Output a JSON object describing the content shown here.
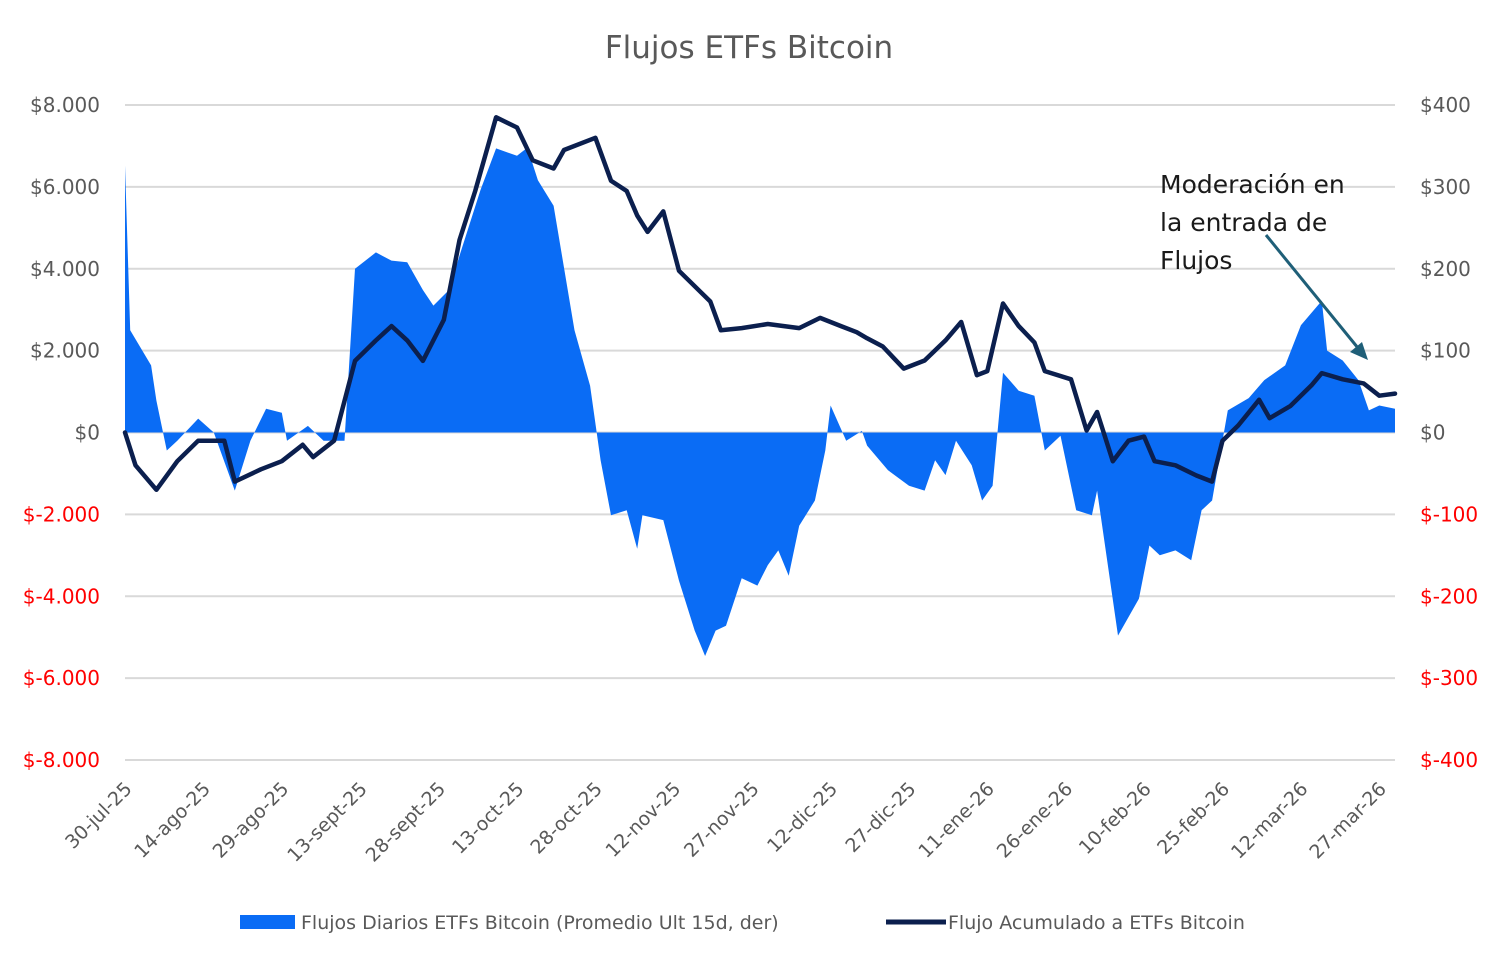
{
  "chart_data": {
    "type": "area+line",
    "title": "Flujos ETFs Bitcoin",
    "xlim": [
      "2025-07-30",
      "2026-03-30"
    ],
    "x_tick_labels": [
      "30-jul-25",
      "14-ago-25",
      "29-ago-25",
      "13-sept-25",
      "28-sept-25",
      "13-oct-25",
      "28-oct-25",
      "12-nov-25",
      "27-nov-25",
      "12-dic-25",
      "27-dic-25",
      "11-ene-26",
      "26-ene-26",
      "10-feb-26",
      "25-feb-26",
      "12-mar-26",
      "27-mar-26"
    ],
    "left_axis": {
      "ylim": [
        -8000,
        8000
      ],
      "ticks": [
        8000,
        6000,
        4000,
        2000,
        0,
        -2000,
        -4000,
        -6000,
        -8000
      ],
      "tick_labels": [
        "$8.000",
        "$6.000",
        "$4.000",
        "$2.000",
        "$0",
        "$-2.000",
        "$-4.000",
        "$-6.000",
        "$-8.000"
      ]
    },
    "right_axis": {
      "ylim": [
        -400,
        400
      ],
      "ticks": [
        400,
        300,
        200,
        100,
        0,
        -100,
        -200,
        -300,
        -400
      ],
      "tick_labels": [
        "$400",
        "$300",
        "$200",
        "$100",
        "$0",
        "$-100",
        "$-200",
        "$-300",
        "$-400"
      ]
    },
    "negative_tick_color": "#ff0000",
    "grid": true,
    "legend_position": "bottom",
    "series": [
      {
        "name": "Flujos Diarios ETFs Bitcoin (Promedio Ult 15d, der)",
        "type": "area",
        "axis": "right",
        "color": "#0a6cf5",
        "points": [
          [
            "2025-07-30",
            326
          ],
          [
            "2025-07-31",
            125
          ],
          [
            "2025-08-04",
            82
          ],
          [
            "2025-08-05",
            39
          ],
          [
            "2025-08-07",
            -22
          ],
          [
            "2025-08-09",
            -10
          ],
          [
            "2025-08-13",
            17
          ],
          [
            "2025-08-16",
            0
          ],
          [
            "2025-08-20",
            -71
          ],
          [
            "2025-08-23",
            -10
          ],
          [
            "2025-08-26",
            29
          ],
          [
            "2025-08-29",
            24
          ],
          [
            "2025-08-30",
            -10
          ],
          [
            "2025-09-03",
            8
          ],
          [
            "2025-09-06",
            -10
          ],
          [
            "2025-09-10",
            -10
          ],
          [
            "2025-09-12",
            200
          ],
          [
            "2025-09-16",
            220
          ],
          [
            "2025-09-19",
            210
          ],
          [
            "2025-09-22",
            208
          ],
          [
            "2025-09-25",
            174
          ],
          [
            "2025-09-27",
            155
          ],
          [
            "2025-09-30",
            174
          ],
          [
            "2025-10-02",
            216
          ],
          [
            "2025-10-06",
            296
          ],
          [
            "2025-10-09",
            347
          ],
          [
            "2025-10-13",
            338
          ],
          [
            "2025-10-15",
            348
          ],
          [
            "2025-10-17",
            308
          ],
          [
            "2025-10-20",
            277
          ],
          [
            "2025-10-24",
            125
          ],
          [
            "2025-10-27",
            57
          ],
          [
            "2025-10-29",
            -34
          ],
          [
            "2025-10-31",
            -101
          ],
          [
            "2025-11-03",
            -95
          ],
          [
            "2025-11-05",
            -142
          ],
          [
            "2025-11-06",
            -101
          ],
          [
            "2025-11-10",
            -107
          ],
          [
            "2025-11-13",
            -181
          ],
          [
            "2025-11-16",
            -242
          ],
          [
            "2025-11-18",
            -273
          ],
          [
            "2025-11-20",
            -242
          ],
          [
            "2025-11-22",
            -236
          ],
          [
            "2025-11-25",
            -178
          ],
          [
            "2025-11-28",
            -187
          ],
          [
            "2025-11-30",
            -162
          ],
          [
            "2025-12-02",
            -144
          ],
          [
            "2025-12-04",
            -175
          ],
          [
            "2025-12-06",
            -114
          ],
          [
            "2025-12-09",
            -83
          ],
          [
            "2025-12-11",
            -22
          ],
          [
            "2025-12-12",
            33
          ],
          [
            "2025-12-15",
            -10
          ],
          [
            "2025-12-18",
            2
          ],
          [
            "2025-12-19",
            -16
          ],
          [
            "2025-12-23",
            -46
          ],
          [
            "2025-12-27",
            -65
          ],
          [
            "2025-12-30",
            -71
          ],
          [
            "2026-01-01",
            -34
          ],
          [
            "2026-01-03",
            -52
          ],
          [
            "2026-01-05",
            -10
          ],
          [
            "2026-01-08",
            -40
          ],
          [
            "2026-01-10",
            -83
          ],
          [
            "2026-01-12",
            -65
          ],
          [
            "2026-01-14",
            73
          ],
          [
            "2026-01-17",
            51
          ],
          [
            "2026-01-20",
            45
          ],
          [
            "2026-01-22",
            -22
          ],
          [
            "2026-01-25",
            -4
          ],
          [
            "2026-01-28",
            -95
          ],
          [
            "2026-01-31",
            -101
          ],
          [
            "2026-02-01",
            -71
          ],
          [
            "2026-02-05",
            -248
          ],
          [
            "2026-02-09",
            -203
          ],
          [
            "2026-02-11",
            -138
          ],
          [
            "2026-02-13",
            -150
          ],
          [
            "2026-02-16",
            -144
          ],
          [
            "2026-02-19",
            -156
          ],
          [
            "2026-02-21",
            -95
          ],
          [
            "2026-02-23",
            -83
          ],
          [
            "2026-02-25",
            -10
          ],
          [
            "2026-02-26",
            27
          ],
          [
            "2026-03-02",
            42
          ],
          [
            "2026-03-05",
            64
          ],
          [
            "2026-03-09",
            82
          ],
          [
            "2026-03-12",
            131
          ],
          [
            "2026-03-16",
            161
          ],
          [
            "2026-03-17",
            100
          ],
          [
            "2026-03-20",
            88
          ],
          [
            "2026-03-23",
            64
          ],
          [
            "2026-03-25",
            27
          ],
          [
            "2026-03-27",
            33
          ],
          [
            "2026-03-30",
            29
          ]
        ]
      },
      {
        "name": "Flujo Acumulado a ETFs Bitcoin",
        "type": "line",
        "axis": "left",
        "color": "#0b1f4e",
        "points": [
          [
            "2025-07-30",
            0
          ],
          [
            "2025-08-01",
            -800
          ],
          [
            "2025-08-05",
            -1400
          ],
          [
            "2025-08-09",
            -700
          ],
          [
            "2025-08-13",
            -200
          ],
          [
            "2025-08-18",
            -200
          ],
          [
            "2025-08-20",
            -1200
          ],
          [
            "2025-08-25",
            -900
          ],
          [
            "2025-08-29",
            -700
          ],
          [
            "2025-09-02",
            -300
          ],
          [
            "2025-09-04",
            -600
          ],
          [
            "2025-09-08",
            -200
          ],
          [
            "2025-09-12",
            1750
          ],
          [
            "2025-09-16",
            2250
          ],
          [
            "2025-09-19",
            2600
          ],
          [
            "2025-09-22",
            2250
          ],
          [
            "2025-09-25",
            1750
          ],
          [
            "2025-09-29",
            2750
          ],
          [
            "2025-10-02",
            4700
          ],
          [
            "2025-10-05",
            5900
          ],
          [
            "2025-10-09",
            7700
          ],
          [
            "2025-10-13",
            7450
          ],
          [
            "2025-10-16",
            6650
          ],
          [
            "2025-10-20",
            6450
          ],
          [
            "2025-10-22",
            6900
          ],
          [
            "2025-10-28",
            7200
          ],
          [
            "2025-10-31",
            6150
          ],
          [
            "2025-11-03",
            5900
          ],
          [
            "2025-11-05",
            5300
          ],
          [
            "2025-11-07",
            4900
          ],
          [
            "2025-11-10",
            5400
          ],
          [
            "2025-11-13",
            3950
          ],
          [
            "2025-11-17",
            3450
          ],
          [
            "2025-11-19",
            3200
          ],
          [
            "2025-11-21",
            2500
          ],
          [
            "2025-11-25",
            2550
          ],
          [
            "2025-11-30",
            2650
          ],
          [
            "2025-12-06",
            2550
          ],
          [
            "2025-12-10",
            2800
          ],
          [
            "2025-12-14",
            2600
          ],
          [
            "2025-12-17",
            2450
          ],
          [
            "2025-12-19",
            2300
          ],
          [
            "2025-12-22",
            2100
          ],
          [
            "2025-12-26",
            1560
          ],
          [
            "2025-12-30",
            1760
          ],
          [
            "2026-01-03",
            2250
          ],
          [
            "2026-01-06",
            2700
          ],
          [
            "2026-01-09",
            1400
          ],
          [
            "2026-01-11",
            1500
          ],
          [
            "2026-01-14",
            3150
          ],
          [
            "2026-01-17",
            2600
          ],
          [
            "2026-01-20",
            2200
          ],
          [
            "2026-01-22",
            1500
          ],
          [
            "2026-01-27",
            1300
          ],
          [
            "2026-01-30",
            50
          ],
          [
            "2026-02-01",
            500
          ],
          [
            "2026-02-04",
            -700
          ],
          [
            "2026-02-07",
            -200
          ],
          [
            "2026-02-10",
            -100
          ],
          [
            "2026-02-12",
            -700
          ],
          [
            "2026-02-16",
            -800
          ],
          [
            "2026-02-20",
            -1050
          ],
          [
            "2026-02-23",
            -1200
          ],
          [
            "2026-02-25",
            -200
          ],
          [
            "2026-02-28",
            170
          ],
          [
            "2026-03-04",
            800
          ],
          [
            "2026-03-06",
            350
          ],
          [
            "2026-03-10",
            650
          ],
          [
            "2026-03-14",
            1150
          ],
          [
            "2026-03-16",
            1450
          ],
          [
            "2026-03-20",
            1300
          ],
          [
            "2026-03-24",
            1200
          ],
          [
            "2026-03-27",
            900
          ],
          [
            "2026-03-30",
            950
          ]
        ]
      }
    ],
    "annotation": {
      "lines": [
        "Moderación en",
        "la entrada de",
        "Flujos"
      ],
      "arrow_color": "#1f5f78"
    }
  }
}
